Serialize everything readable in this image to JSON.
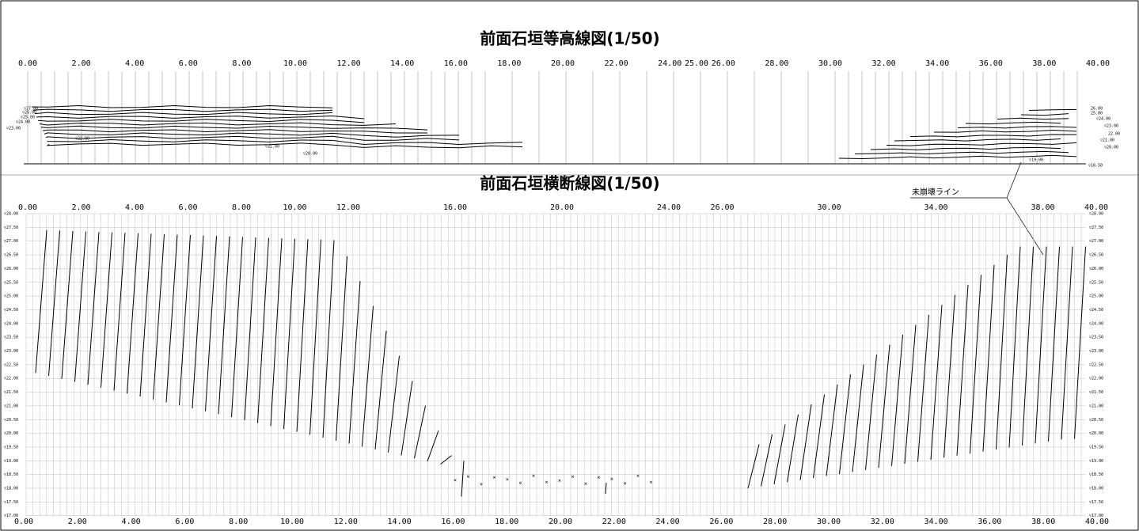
{
  "top_view": {
    "title": "前面石垣等高線図(1/50)",
    "axis_labels": [
      "0.00",
      "2.00",
      "4.00",
      "6.00",
      "8.00",
      "10.00",
      "12.00",
      "14.00",
      "16.00",
      "18.00",
      "20.00",
      "22.00",
      "24.00",
      "25.00",
      "26.00",
      "28.00",
      "30.00",
      "32.00",
      "34.00",
      "36.00",
      "38.00",
      "40.00"
    ],
    "contour_labels": [
      "▽27.00",
      "▽26.00",
      "▽25.00",
      "▽24.00",
      "▽23.00",
      "▽22.00",
      "▽21.00",
      "▽20.00",
      "▽19.00",
      "▽18.50",
      "26.00",
      "25.00",
      "▽24.00",
      "▽23.00",
      "22.00",
      "▽21.00",
      "▽20.00"
    ]
  },
  "section_view": {
    "title": "前面石垣横断線図(1/50)",
    "annotation": "未崩壊ライン",
    "top_axis_labels": [
      "0.00",
      "2.00",
      "4.00",
      "6.00",
      "8.00",
      "10.00",
      "12.00",
      "16.00",
      "20.00",
      "24.00",
      "26.00",
      "30.00",
      "34.00",
      "38.00",
      "40.00"
    ],
    "bottom_axis_labels": [
      "0.00",
      "2.00",
      "4.00",
      "6.00",
      "8.00",
      "10.00",
      "12.00",
      "14.00",
      "16.00",
      "18.00",
      "20.00",
      "22.00",
      "24.00",
      "26.00",
      "28.00",
      "30.00",
      "32.00",
      "34.00",
      "36.00",
      "38.00",
      "40.00"
    ],
    "elevation_labels": [
      "▽28.00",
      "▽27.50",
      "▽27.00",
      "▽26.50",
      "▽26.00",
      "▽25.50",
      "▽25.00",
      "▽24.50",
      "▽24.00",
      "▽23.50",
      "▽23.00",
      "▽22.50",
      "▽22.00",
      "▽21.50",
      "▽21.00",
      "▽20.50",
      "▽20.00",
      "▽19.50",
      "▽19.00",
      "▽18.50",
      "▽18.00",
      "▽17.50",
      "▽17.00"
    ]
  }
}
